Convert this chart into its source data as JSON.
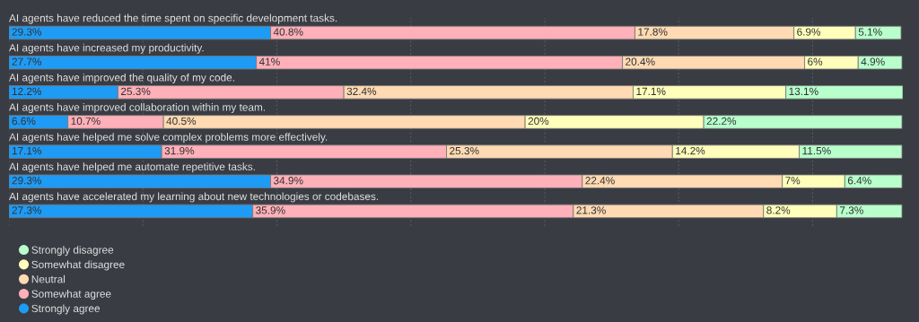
{
  "chart_data": {
    "type": "bar",
    "orientation": "horizontal",
    "stacked": true,
    "grid": "x",
    "legend": "bottom left",
    "tick_labels": false,
    "categories": [
      "AI agents have reduced the time spent on specific development tasks.",
      "AI agents have increased my productivity.",
      "AI agents have improved the quality of my code.",
      "AI agents have improved collaboration within my team.",
      "AI agents have helped me solve complex problems more effectively.",
      "AI agents have helped me automate repetitive tasks.",
      "AI agents have accelerated my learning about new technologies or codebases."
    ],
    "series": [
      {
        "name": "Strongly agree",
        "color": "#1e9bf5",
        "values": [
          29.3,
          27.7,
          12.2,
          6.6,
          17.1,
          29.3,
          27.3
        ],
        "value_labels": [
          "29.3%",
          "27.7%",
          "12.2%",
          "6.6%",
          "17.1%",
          "29.3%",
          "27.3%"
        ]
      },
      {
        "name": "Somewhat agree",
        "color": "#ffb0b9",
        "values": [
          40.8,
          41,
          25.3,
          10.7,
          31.9,
          34.9,
          35.9
        ],
        "value_labels": [
          "40.8%",
          "41%",
          "25.3%",
          "10.7%",
          "31.9%",
          "34.9%",
          "35.9%"
        ]
      },
      {
        "name": "Neutral",
        "color": "#ffdab3",
        "values": [
          17.8,
          20.4,
          32.4,
          40.5,
          25.3,
          22.4,
          21.3
        ],
        "value_labels": [
          "17.8%",
          "20.4%",
          "32.4%",
          "40.5%",
          "25.3%",
          "22.4%",
          "21.3%"
        ]
      },
      {
        "name": "Somewhat disagree",
        "color": "#ffffbb",
        "values": [
          6.9,
          6,
          17.1,
          20,
          14.2,
          7,
          8.2
        ],
        "value_labels": [
          "6.9%",
          "6%",
          "17.1%",
          "20%",
          "14.2%",
          "7%",
          "8.2%"
        ]
      },
      {
        "name": "Strongly disagree",
        "color": "#b8ffcc",
        "values": [
          5.1,
          4.9,
          13.1,
          22.2,
          11.5,
          6.4,
          7.3
        ],
        "value_labels": [
          "5.1%",
          "4.9%",
          "13.1%",
          "22.2%",
          "11.5%",
          "6.4%",
          "7.3%"
        ]
      }
    ]
  }
}
